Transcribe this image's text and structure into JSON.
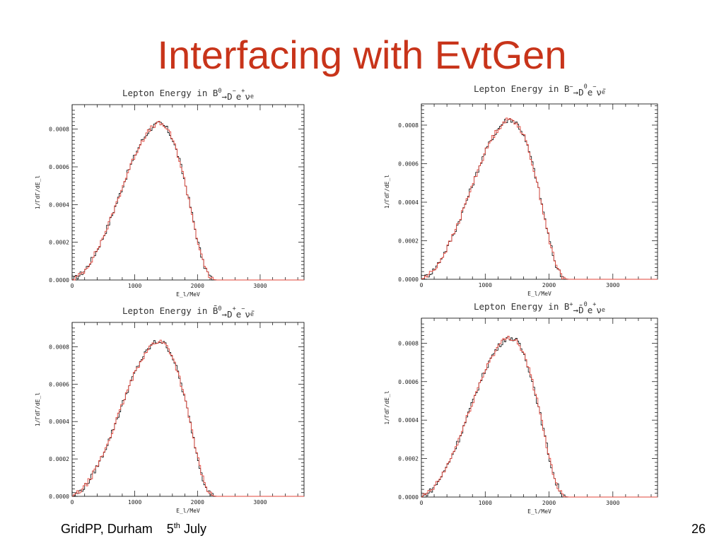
{
  "slide": {
    "title": "Interfacing with EvtGen",
    "footer_org": "GridPP, Durham",
    "footer_day": "5",
    "footer_sup": "th",
    "footer_month": "July",
    "page_number": "26"
  },
  "colors": {
    "title": "#c8341a",
    "series_black": "#000000",
    "series_red": "#e0443a"
  },
  "chart_data": [
    {
      "type": "line",
      "title_parts": [
        "Lepton Energy in B",
        "0",
        "→D",
        "−",
        "e",
        "+",
        "ν",
        "e"
      ],
      "xlabel": "E_l/MeV",
      "ylabel": "1/ΓdΓ/dE_l",
      "xlim": [
        0,
        3700
      ],
      "ylim": [
        0,
        0.00093
      ],
      "xticks": [
        "0",
        "1000",
        "2000",
        "3000"
      ],
      "yticks": [
        "0.0000",
        "0.0002",
        "0.0004",
        "0.0006",
        "0.0008"
      ],
      "curve_x": [
        0,
        100,
        200,
        300,
        400,
        500,
        600,
        700,
        800,
        900,
        1000,
        1100,
        1200,
        1300,
        1400,
        1500,
        1600,
        1700,
        1800,
        1900,
        2000,
        2100,
        2200,
        2250,
        2300,
        3700
      ],
      "curve_y": [
        0.0,
        2e-05,
        5e-05,
        0.0001,
        0.00016,
        0.00023,
        0.00031,
        0.0004,
        0.00049,
        0.00058,
        0.00066,
        0.00073,
        0.00078,
        0.00082,
        0.00083,
        0.00081,
        0.00075,
        0.00065,
        0.00052,
        0.00037,
        0.00021,
        8e-05,
        1.5e-05,
        3e-06,
        0.0,
        0.0
      ],
      "series": [
        {
          "color": "black"
        },
        {
          "color": "red"
        }
      ]
    },
    {
      "type": "line",
      "title_parts": [
        "Lepton Energy in B",
        "−",
        "→D",
        "0",
        "e",
        "−",
        "ν̄",
        "e"
      ],
      "xlabel": "E_l/MeV",
      "ylabel": "1/ΓdΓ/dE_l",
      "xlim": [
        0,
        3700
      ],
      "ylim": [
        0,
        0.00091
      ],
      "xticks": [
        "0",
        "1000",
        "2000",
        "3000"
      ],
      "yticks": [
        "0.0000",
        "0.0002",
        "0.0004",
        "0.0006",
        "0.0008"
      ],
      "curve_x": [
        0,
        100,
        200,
        300,
        400,
        500,
        600,
        700,
        800,
        900,
        1000,
        1100,
        1200,
        1300,
        1400,
        1500,
        1600,
        1700,
        1800,
        1900,
        2000,
        2100,
        2200,
        2250,
        2300,
        3700
      ],
      "curve_y": [
        0.0,
        2e-05,
        5e-05,
        0.0001,
        0.00016,
        0.00023,
        0.00031,
        0.0004,
        0.00049,
        0.00058,
        0.00066,
        0.00073,
        0.00078,
        0.00082,
        0.00083,
        0.00081,
        0.00075,
        0.00065,
        0.00052,
        0.00037,
        0.00021,
        8e-05,
        1.5e-05,
        3e-06,
        0.0,
        0.0
      ],
      "series": [
        {
          "color": "black"
        },
        {
          "color": "red"
        }
      ]
    },
    {
      "type": "line",
      "title_parts": [
        "Lepton Energy in B̄",
        "0",
        "→D",
        "+",
        "e",
        "−",
        "ν̄",
        "e"
      ],
      "xlabel": "E_l/MeV",
      "ylabel": "1/ΓdΓ/dE_l",
      "xlim": [
        0,
        3700
      ],
      "ylim": [
        0,
        0.00093
      ],
      "xticks": [
        "0",
        "1000",
        "2000",
        "3000"
      ],
      "yticks": [
        "0.0000",
        "0.0002",
        "0.0004",
        "0.0006",
        "0.0008"
      ],
      "curve_x": [
        0,
        100,
        200,
        300,
        400,
        500,
        600,
        700,
        800,
        900,
        1000,
        1100,
        1200,
        1300,
        1400,
        1500,
        1600,
        1700,
        1800,
        1900,
        2000,
        2100,
        2200,
        2250,
        2300,
        3700
      ],
      "curve_y": [
        0.0,
        2e-05,
        5e-05,
        0.0001,
        0.00016,
        0.00023,
        0.00031,
        0.0004,
        0.00049,
        0.00058,
        0.00066,
        0.00073,
        0.00078,
        0.00082,
        0.00083,
        0.00081,
        0.00075,
        0.00065,
        0.00052,
        0.00037,
        0.00021,
        8e-05,
        1.5e-05,
        3e-06,
        0.0,
        0.0
      ],
      "series": [
        {
          "color": "black"
        },
        {
          "color": "red"
        }
      ]
    },
    {
      "type": "line",
      "title_parts": [
        "Lepton Energy in B",
        "+",
        "→D̄",
        "0",
        "e",
        "+",
        "ν",
        "e"
      ],
      "xlabel": "E_l/MeV",
      "ylabel": "1/ΓdΓ/dE_l",
      "xlim": [
        0,
        3700
      ],
      "ylim": [
        0,
        0.00093
      ],
      "xticks": [
        "0",
        "1000",
        "2000",
        "3000"
      ],
      "yticks": [
        "0.0000",
        "0.0002",
        "0.0004",
        "0.0006",
        "0.0008"
      ],
      "curve_x": [
        0,
        100,
        200,
        300,
        400,
        500,
        600,
        700,
        800,
        900,
        1000,
        1100,
        1200,
        1300,
        1400,
        1500,
        1600,
        1700,
        1800,
        1900,
        2000,
        2100,
        2200,
        2250,
        2300,
        3700
      ],
      "curve_y": [
        0.0,
        2e-05,
        5e-05,
        0.0001,
        0.00016,
        0.00023,
        0.00031,
        0.0004,
        0.00049,
        0.00058,
        0.00066,
        0.00073,
        0.00078,
        0.00082,
        0.00083,
        0.00081,
        0.00075,
        0.00065,
        0.00052,
        0.00037,
        0.00021,
        8e-05,
        1.5e-05,
        3e-06,
        0.0,
        0.0
      ],
      "series": [
        {
          "color": "black"
        },
        {
          "color": "red"
        }
      ]
    }
  ]
}
